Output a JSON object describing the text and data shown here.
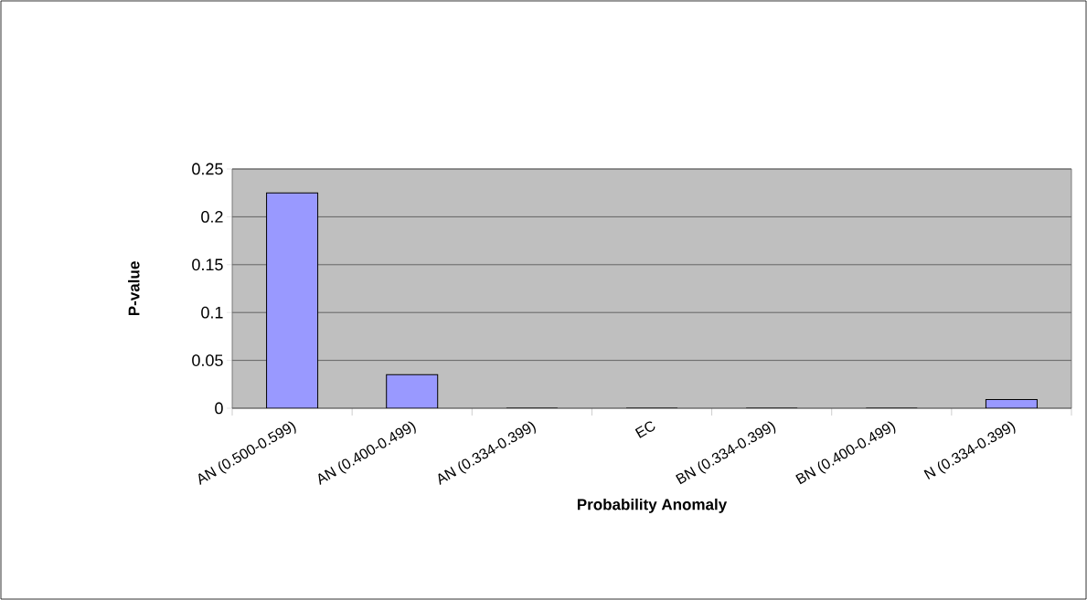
{
  "chart_data": {
    "type": "bar",
    "xlabel": "Probability Anomaly",
    "ylabel": "P-value",
    "categories": [
      "AN (0.500-0.599)",
      "AN (0.400-0.499)",
      "AN (0.334-0.399)",
      "EC",
      "BN (0.334-0.399)",
      "BN (0.400-0.499)",
      "N (0.334-0.399)"
    ],
    "values": [
      0.225,
      0.035,
      0,
      0,
      0,
      0,
      0.009
    ],
    "color": "#9999ff",
    "ylim": [
      0,
      0.25
    ],
    "yticks": [
      0,
      0.05,
      0.1,
      0.15,
      0.2,
      0.25
    ],
    "grid": "y"
  }
}
